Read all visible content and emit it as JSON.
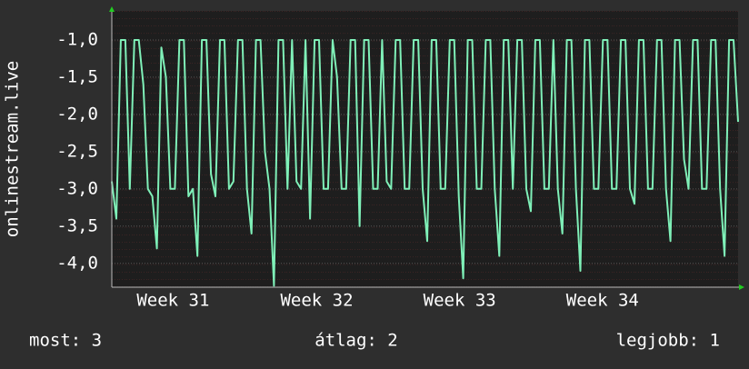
{
  "chart_data": {
    "type": "line",
    "ylabel": "onlinestream.live",
    "series": [
      {
        "name": "onlinestream.live",
        "color": "#7ff0b8",
        "values": [
          -2.9,
          -3.4,
          -1.0,
          -1.0,
          -3.0,
          -1.0,
          -1.0,
          -1.6,
          -3.0,
          -3.1,
          -3.8,
          -1.1,
          -1.5,
          -3.0,
          -3.0,
          -1.0,
          -1.0,
          -3.1,
          -3.0,
          -3.9,
          -1.0,
          -1.0,
          -2.8,
          -3.1,
          -1.0,
          -1.0,
          -3.0,
          -2.9,
          -1.0,
          -1.0,
          -3.0,
          -3.6,
          -1.0,
          -1.0,
          -2.5,
          -3.0,
          -4.3,
          -1.0,
          -1.0,
          -3.0,
          -1.0,
          -2.9,
          -3.0,
          -1.0,
          -3.4,
          -1.0,
          -1.0,
          -3.0,
          -3.0,
          -1.0,
          -1.5,
          -3.0,
          -3.0,
          -1.0,
          -1.0,
          -3.5,
          -1.0,
          -1.0,
          -3.0,
          -3.0,
          -1.0,
          -2.9,
          -3.0,
          -1.0,
          -1.0,
          -3.0,
          -3.0,
          -1.0,
          -1.0,
          -3.0,
          -3.7,
          -1.0,
          -1.0,
          -3.0,
          -3.0,
          -1.0,
          -1.0,
          -3.1,
          -4.2,
          -1.0,
          -1.0,
          -3.0,
          -3.0,
          -1.0,
          -1.0,
          -3.0,
          -3.9,
          -1.0,
          -1.0,
          -3.0,
          -1.0,
          -1.0,
          -3.0,
          -3.3,
          -1.0,
          -1.0,
          -3.0,
          -3.0,
          -1.0,
          -3.0,
          -3.6,
          -1.0,
          -1.0,
          -3.0,
          -4.1,
          -1.0,
          -1.0,
          -3.0,
          -3.0,
          -1.0,
          -1.0,
          -3.0,
          -3.0,
          -1.0,
          -1.0,
          -3.0,
          -3.2,
          -1.0,
          -1.0,
          -3.0,
          -3.0,
          -1.0,
          -1.0,
          -3.0,
          -3.7,
          -1.0,
          -1.0,
          -2.6,
          -3.0,
          -1.0,
          -1.0,
          -3.0,
          -3.0,
          -1.0,
          -1.0,
          -3.0,
          -3.9,
          -1.0,
          -1.0,
          -2.1
        ]
      }
    ],
    "xlim": [
      0,
      139
    ],
    "xticks": [
      {
        "value": 13.6,
        "label": "Week 31"
      },
      {
        "value": 45.5,
        "label": "Week 32"
      },
      {
        "value": 77.2,
        "label": "Week 33"
      },
      {
        "value": 108.9,
        "label": "Week 34"
      }
    ],
    "ylim": [
      -4.32,
      -0.61
    ],
    "yticks": [
      {
        "value": -4.0,
        "label": "-4,0"
      },
      {
        "value": -3.5,
        "label": "-3,5"
      },
      {
        "value": -3.0,
        "label": "-3,0"
      },
      {
        "value": -2.5,
        "label": "-2,5"
      },
      {
        "value": -2.0,
        "label": "-2,0"
      },
      {
        "value": -1.5,
        "label": "-1,5"
      },
      {
        "value": -1.0,
        "label": "-1,0"
      }
    ],
    "grid": true,
    "footer": {
      "current": "most: 3",
      "average": "átlag: 2",
      "best": "legjobb: 1"
    }
  }
}
